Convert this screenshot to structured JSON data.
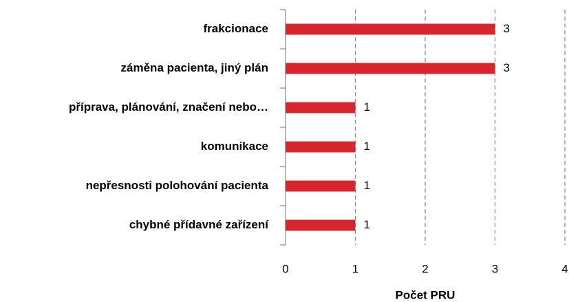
{
  "chart_data": {
    "type": "hbar",
    "x_label": "Počet PRU",
    "categories": [
      "frakcionace",
      "záměna pacienta, jiný plán",
      "příprava, plánování, značení nebo…",
      "komunikace",
      "nepřesnosti polohování pacienta",
      "chybné přídavné zařízení"
    ],
    "values": [
      3,
      3,
      1,
      1,
      1,
      1
    ],
    "color": "#d9262e",
    "xlim": [
      0,
      4
    ],
    "xticks": [
      0,
      1,
      2,
      3,
      4
    ],
    "grid": true
  }
}
